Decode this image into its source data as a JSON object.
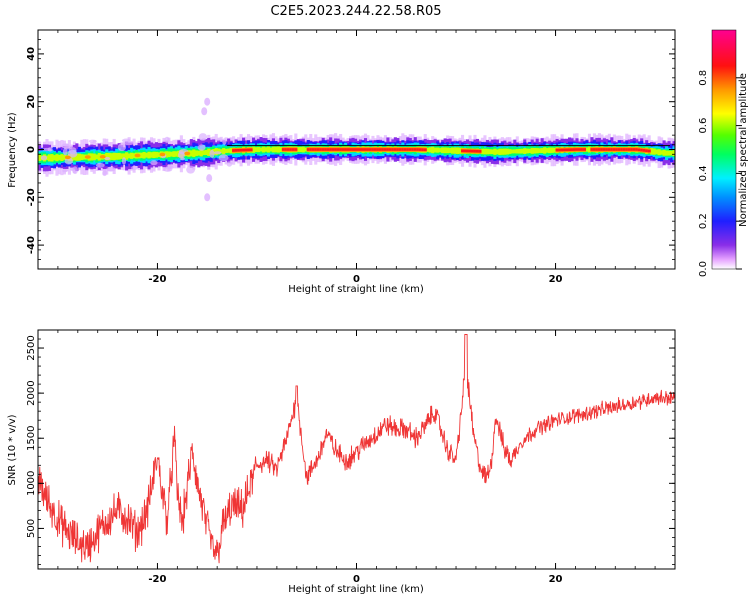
{
  "title": "C2E5.2023.244.22.58.R05",
  "chart_data": [
    {
      "type": "heatmap",
      "xlabel": "Height of straight line (km)",
      "ylabel": "Frequency (Hz)",
      "xlim": [
        -32,
        32
      ],
      "ylim": [
        -50,
        50
      ],
      "xticks": [
        "-20",
        "0",
        "20"
      ],
      "yticks": [
        "-40",
        "-20",
        "0",
        "20",
        "40"
      ],
      "colorbar": {
        "label": "Normalized spectral amplitude",
        "range": [
          0.0,
          1.0
        ],
        "ticks": [
          "0.0",
          "0.2",
          "0.4",
          "0.6",
          "0.8"
        ],
        "colormap": "hsv-reversed (purple→blue→cyan→green→yellow→red→magenta)"
      },
      "ridge": [
        {
          "x": -31,
          "y": -3.5
        },
        {
          "x": -28,
          "y": -3.2
        },
        {
          "x": -25,
          "y": -3.0
        },
        {
          "x": -22,
          "y": -2.5
        },
        {
          "x": -19,
          "y": -2.0
        },
        {
          "x": -16,
          "y": -1.5
        },
        {
          "x": -13,
          "y": -0.5
        },
        {
          "x": -10,
          "y": 0
        },
        {
          "x": -6,
          "y": 0
        },
        {
          "x": 0,
          "y": 0
        },
        {
          "x": 6,
          "y": 0
        },
        {
          "x": 10,
          "y": -0.5
        },
        {
          "x": 14,
          "y": -1.0
        },
        {
          "x": 18,
          "y": -0.5
        },
        {
          "x": 22,
          "y": 0
        },
        {
          "x": 28,
          "y": 0
        },
        {
          "x": 31,
          "y": -1.5
        }
      ],
      "peak_segments": [
        {
          "x0": -12.5,
          "x1": -10.5
        },
        {
          "x0": -7.5,
          "x1": -6.0
        },
        {
          "x0": -5.0,
          "x1": 2.5
        },
        {
          "x0": 1.5,
          "x1": 6.8
        },
        {
          "x0": 10.5,
          "x1": 12.5
        },
        {
          "x0": 20.0,
          "x1": 23.0
        },
        {
          "x0": 23.5,
          "x1": 29.5
        }
      ]
    },
    {
      "type": "line",
      "xlabel": "Height of straight line (km)",
      "ylabel": "SNR (10 * v/v)",
      "xlim": [
        -32,
        32
      ],
      "ylim": [
        50,
        2700
      ],
      "xticks": [
        "-20",
        "0",
        "20"
      ],
      "yticks": [
        "500",
        "1000",
        "1500",
        "2000",
        "2500"
      ],
      "color": "#ef3535",
      "series_anchor": [
        {
          "x": -32,
          "y": 1050
        },
        {
          "x": -31,
          "y": 800
        },
        {
          "x": -30,
          "y": 600
        },
        {
          "x": -29,
          "y": 450
        },
        {
          "x": -28,
          "y": 350
        },
        {
          "x": -27,
          "y": 300
        },
        {
          "x": -26,
          "y": 450
        },
        {
          "x": -25,
          "y": 600
        },
        {
          "x": -24,
          "y": 700
        },
        {
          "x": -23,
          "y": 600
        },
        {
          "x": -22,
          "y": 450
        },
        {
          "x": -21,
          "y": 700
        },
        {
          "x": -20,
          "y": 1300
        },
        {
          "x": -19.5,
          "y": 900
        },
        {
          "x": -19,
          "y": 600
        },
        {
          "x": -18.3,
          "y": 1500
        },
        {
          "x": -18,
          "y": 900
        },
        {
          "x": -17.5,
          "y": 550
        },
        {
          "x": -16.5,
          "y": 1350
        },
        {
          "x": -16,
          "y": 1000
        },
        {
          "x": -15,
          "y": 500
        },
        {
          "x": -14.5,
          "y": 300
        },
        {
          "x": -14,
          "y": 200
        },
        {
          "x": -13.5,
          "y": 500
        },
        {
          "x": -12.5,
          "y": 750
        },
        {
          "x": -11.5,
          "y": 700
        },
        {
          "x": -11,
          "y": 850
        },
        {
          "x": -10,
          "y": 1200
        },
        {
          "x": -9,
          "y": 1250
        },
        {
          "x": -8,
          "y": 1150
        },
        {
          "x": -7,
          "y": 1500
        },
        {
          "x": -6,
          "y": 1950
        },
        {
          "x": -5.5,
          "y": 1500
        },
        {
          "x": -5,
          "y": 1050
        },
        {
          "x": -4,
          "y": 1250
        },
        {
          "x": -3,
          "y": 1550
        },
        {
          "x": -2,
          "y": 1350
        },
        {
          "x": -1,
          "y": 1250
        },
        {
          "x": 0,
          "y": 1350
        },
        {
          "x": 1,
          "y": 1450
        },
        {
          "x": 2,
          "y": 1550
        },
        {
          "x": 3,
          "y": 1650
        },
        {
          "x": 4,
          "y": 1600
        },
        {
          "x": 5,
          "y": 1600
        },
        {
          "x": 6,
          "y": 1500
        },
        {
          "x": 7,
          "y": 1650
        },
        {
          "x": 7.8,
          "y": 1800
        },
        {
          "x": 8.5,
          "y": 1600
        },
        {
          "x": 9,
          "y": 1400
        },
        {
          "x": 10,
          "y": 1250
        },
        {
          "x": 11,
          "y": 2300
        },
        {
          "x": 11.8,
          "y": 1500
        },
        {
          "x": 12.5,
          "y": 1150
        },
        {
          "x": 13,
          "y": 1050
        },
        {
          "x": 13.5,
          "y": 1200
        },
        {
          "x": 14,
          "y": 1750
        },
        {
          "x": 14.8,
          "y": 1400
        },
        {
          "x": 15.5,
          "y": 1250
        },
        {
          "x": 16.5,
          "y": 1450
        },
        {
          "x": 18,
          "y": 1600
        },
        {
          "x": 20,
          "y": 1700
        },
        {
          "x": 22,
          "y": 1750
        },
        {
          "x": 24,
          "y": 1800
        },
        {
          "x": 26,
          "y": 1850
        },
        {
          "x": 28,
          "y": 1900
        },
        {
          "x": 30,
          "y": 1950
        },
        {
          "x": 32,
          "y": 1950
        }
      ]
    }
  ]
}
